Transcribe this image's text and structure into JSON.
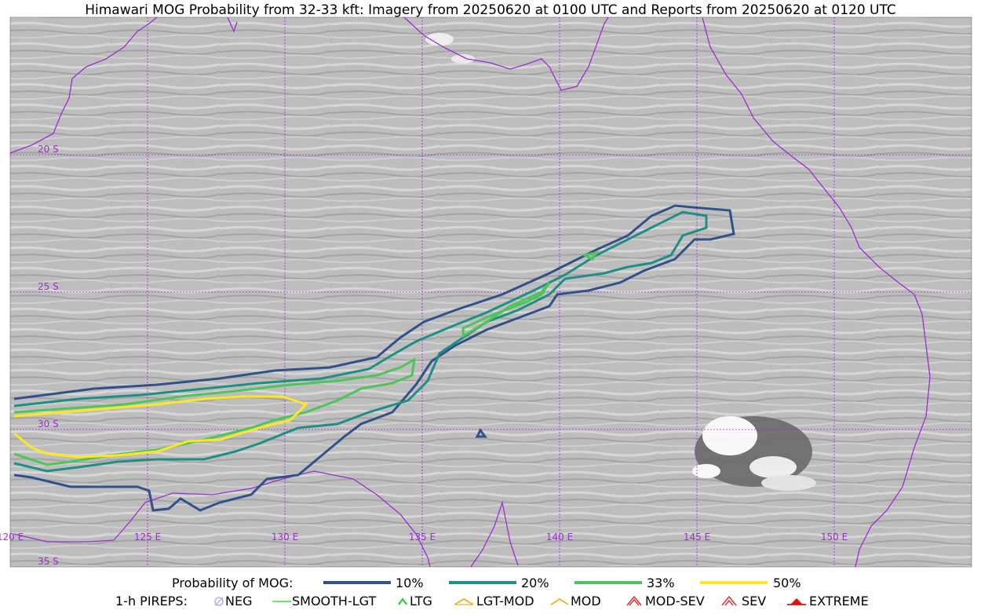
{
  "title": "Himawari MOG Probability from 32-33 kft: Imagery from 20250620 at 0100 UTC and Reports from 20250620 at 0120 UTC",
  "map": {
    "lat_labels": [
      "20 S",
      "25 S",
      "30 S",
      "35 S"
    ],
    "lon_labels": [
      "120 E",
      "125 E",
      "130 E",
      "135 E",
      "140 E",
      "145 E",
      "150 E"
    ],
    "gridline_color": "#9b30d0",
    "coastline_color": "#9b30d0"
  },
  "probability_legend": {
    "label": "Probability of MOG:",
    "items": [
      {
        "label": "10%",
        "color": "#33508a"
      },
      {
        "label": "20%",
        "color": "#1f8f86"
      },
      {
        "label": "33%",
        "color": "#4fc45a"
      },
      {
        "label": "50%",
        "color": "#fde725"
      }
    ]
  },
  "pireps_legend": {
    "label": "1-h PIREPS:",
    "items": [
      {
        "label": "NEG",
        "icon": "neg-icon",
        "color": "#b0b0ee"
      },
      {
        "label": "SMOOTH-LGT",
        "icon": "smooth-lgt-icon",
        "color": "#44dd44"
      },
      {
        "label": "LTG",
        "icon": "ltg-icon",
        "color": "#22cc22"
      },
      {
        "label": "LGT-MOD",
        "icon": "lgt-mod-icon",
        "color": "#f0b020"
      },
      {
        "label": "MOD",
        "icon": "mod-icon",
        "color": "#f0b020"
      },
      {
        "label": "MOD-SEV",
        "icon": "mod-sev-icon",
        "color": "#e03030"
      },
      {
        "label": "SEV",
        "icon": "sev-icon",
        "color": "#e03030"
      },
      {
        "label": "EXTREME",
        "icon": "extreme-icon",
        "color": "#e01010"
      }
    ]
  }
}
